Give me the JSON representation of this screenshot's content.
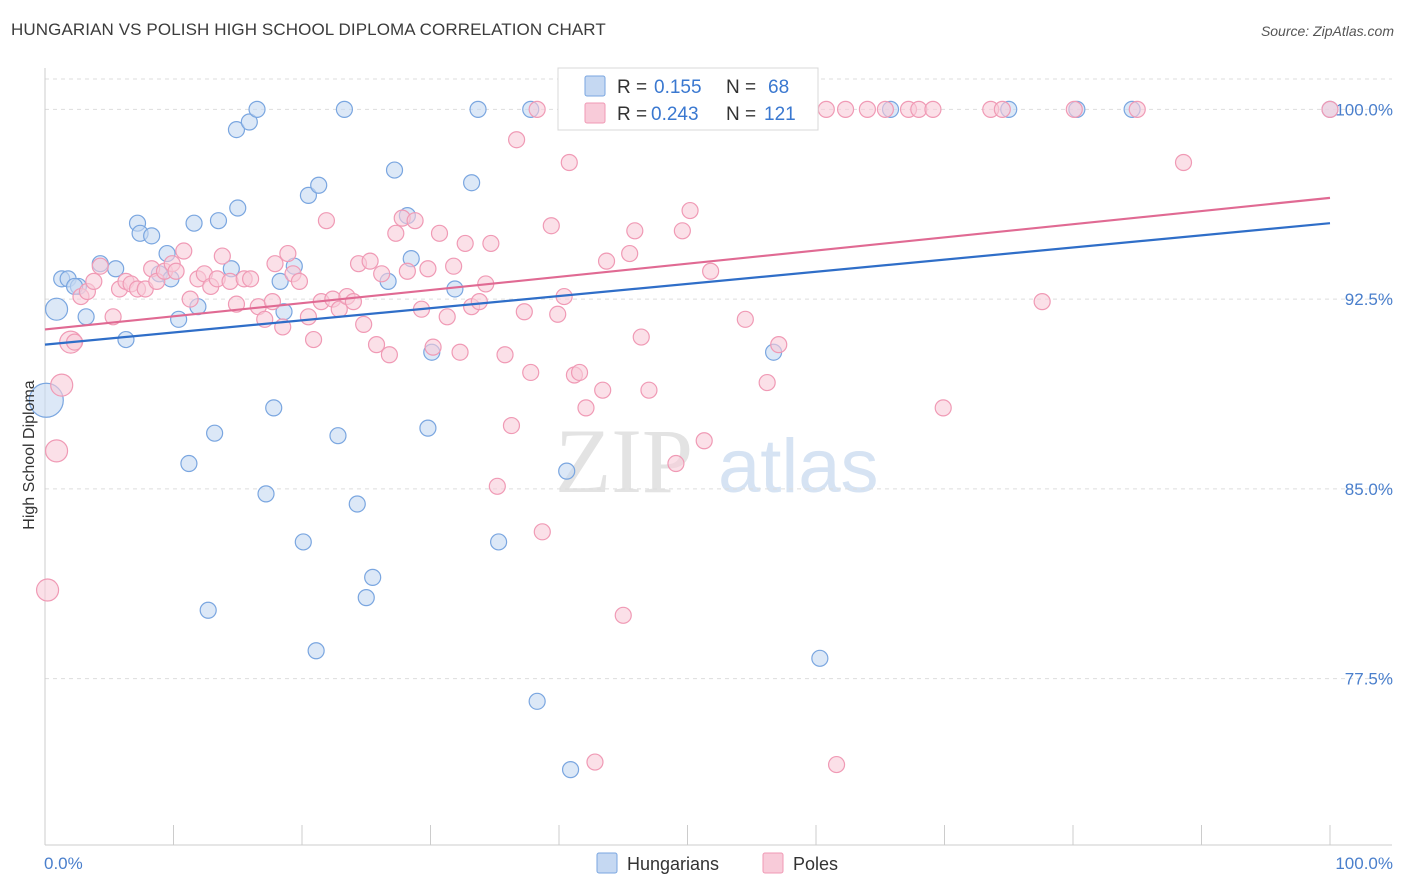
{
  "title": "HUNGARIAN VS POLISH HIGH SCHOOL DIPLOMA CORRELATION CHART",
  "source": "Source: ZipAtlas.com",
  "watermark": {
    "zip": "ZIP",
    "atlas": "atlas"
  },
  "colors": {
    "hungarians": "#7aa6e0",
    "hungarians_fill": "#c5d8f2",
    "hungarians_line": "#2f6ec8",
    "poles": "#f09ab5",
    "poles_fill": "#f8cbd9",
    "poles_line": "#e06a93",
    "axis_text": "#4a7fcc",
    "grid": "#dddddd"
  },
  "legend": {
    "rows": [
      {
        "r_label": "R =",
        "r_value": "0.155",
        "n_label": "N =",
        "n_value": "68"
      },
      {
        "r_label": "R =",
        "r_value": "0.243",
        "n_label": "N =",
        "n_value": "121"
      }
    ]
  },
  "chart_data": {
    "type": "scatter",
    "title": "HUNGARIAN VS POLISH HIGH SCHOOL DIPLOMA CORRELATION CHART",
    "ylabel": "High School Diploma",
    "xlabel": "",
    "xlim": [
      0,
      100
    ],
    "ylim": [
      71.0,
      101.2
    ],
    "x_tick_labels": [
      "0.0%",
      "100.0%"
    ],
    "y_ticks": [
      77.5,
      85.0,
      92.5,
      100.0
    ],
    "y_tick_labels": [
      "77.5%",
      "85.0%",
      "92.5%",
      "100.0%"
    ],
    "legend_position": "bottom",
    "series": [
      {
        "name": "Hungarians",
        "r": 0.155,
        "n": 68,
        "trend": {
          "x0": 0,
          "y0": 90.7,
          "x1": 100,
          "y1": 95.5
        },
        "points": [
          [
            0.1,
            88.5
          ],
          [
            0.9,
            92.1
          ],
          [
            1.3,
            93.3
          ],
          [
            1.8,
            93.3
          ],
          [
            2.6,
            93.0
          ],
          [
            2.3,
            93.0
          ],
          [
            3.2,
            91.8
          ],
          [
            4.3,
            93.9
          ],
          [
            5.5,
            93.7
          ],
          [
            6.3,
            90.9
          ],
          [
            7.2,
            95.5
          ],
          [
            7.4,
            95.1
          ],
          [
            8.3,
            95.0
          ],
          [
            8.9,
            93.5
          ],
          [
            9.5,
            94.3
          ],
          [
            9.8,
            93.3
          ],
          [
            10.4,
            91.7
          ],
          [
            11.2,
            86.0
          ],
          [
            11.6,
            95.5
          ],
          [
            11.9,
            92.2
          ],
          [
            12.7,
            80.2
          ],
          [
            13.2,
            87.2
          ],
          [
            13.5,
            95.6
          ],
          [
            14.5,
            93.7
          ],
          [
            14.9,
            99.2
          ],
          [
            15.0,
            96.1
          ],
          [
            15.9,
            99.5
          ],
          [
            16.5,
            100.0
          ],
          [
            17.2,
            84.8
          ],
          [
            17.8,
            88.2
          ],
          [
            18.3,
            93.2
          ],
          [
            18.6,
            92.0
          ],
          [
            19.4,
            93.8
          ],
          [
            20.1,
            82.9
          ],
          [
            20.5,
            96.6
          ],
          [
            21.1,
            78.6
          ],
          [
            21.3,
            97.0
          ],
          [
            22.8,
            87.1
          ],
          [
            23.3,
            100.0
          ],
          [
            24.3,
            84.4
          ],
          [
            25.0,
            80.7
          ],
          [
            25.5,
            81.5
          ],
          [
            26.7,
            93.2
          ],
          [
            27.2,
            97.6
          ],
          [
            28.2,
            95.8
          ],
          [
            28.5,
            94.1
          ],
          [
            29.8,
            87.4
          ],
          [
            30.1,
            90.4
          ],
          [
            31.9,
            92.9
          ],
          [
            33.2,
            97.1
          ],
          [
            33.7,
            100.0
          ],
          [
            35.3,
            82.9
          ],
          [
            37.8,
            100.0
          ],
          [
            38.3,
            76.6
          ],
          [
            40.6,
            85.7
          ],
          [
            40.9,
            73.9
          ],
          [
            47.3,
            100.0
          ],
          [
            50.6,
            100.0
          ],
          [
            51.0,
            100.0
          ],
          [
            53.3,
            100.0
          ],
          [
            55.6,
            100.0
          ],
          [
            56.7,
            90.4
          ],
          [
            60.3,
            78.3
          ],
          [
            65.8,
            100.0
          ],
          [
            75.0,
            100.0
          ],
          [
            80.3,
            100.0
          ],
          [
            84.6,
            100.0
          ],
          [
            100.0,
            100.0
          ]
        ]
      },
      {
        "name": "Poles",
        "r": 0.243,
        "n": 121,
        "trend": {
          "x0": 0,
          "y0": 91.3,
          "x1": 100,
          "y1": 96.5
        },
        "points": [
          [
            0.2,
            81.0
          ],
          [
            0.9,
            86.5
          ],
          [
            1.3,
            89.1
          ],
          [
            2.0,
            90.8
          ],
          [
            2.3,
            90.8
          ],
          [
            2.8,
            92.6
          ],
          [
            3.3,
            92.8
          ],
          [
            3.8,
            93.2
          ],
          [
            4.3,
            93.8
          ],
          [
            5.3,
            91.8
          ],
          [
            5.8,
            92.9
          ],
          [
            6.3,
            93.2
          ],
          [
            6.7,
            93.1
          ],
          [
            7.2,
            92.9
          ],
          [
            7.8,
            92.9
          ],
          [
            8.3,
            93.7
          ],
          [
            8.7,
            93.2
          ],
          [
            9.3,
            93.6
          ],
          [
            9.9,
            93.9
          ],
          [
            10.2,
            93.6
          ],
          [
            10.8,
            94.4
          ],
          [
            11.3,
            92.5
          ],
          [
            11.9,
            93.3
          ],
          [
            12.4,
            93.5
          ],
          [
            12.9,
            93.0
          ],
          [
            13.4,
            93.3
          ],
          [
            13.8,
            94.2
          ],
          [
            14.4,
            93.2
          ],
          [
            14.9,
            92.3
          ],
          [
            15.5,
            93.3
          ],
          [
            16.0,
            93.3
          ],
          [
            16.6,
            92.2
          ],
          [
            17.1,
            91.7
          ],
          [
            17.7,
            92.4
          ],
          [
            17.9,
            93.9
          ],
          [
            18.5,
            91.4
          ],
          [
            18.9,
            94.3
          ],
          [
            19.3,
            93.5
          ],
          [
            19.8,
            93.2
          ],
          [
            20.5,
            91.8
          ],
          [
            20.9,
            90.9
          ],
          [
            21.5,
            92.4
          ],
          [
            21.9,
            95.6
          ],
          [
            22.4,
            92.5
          ],
          [
            22.9,
            92.1
          ],
          [
            23.5,
            92.6
          ],
          [
            24.0,
            92.4
          ],
          [
            24.4,
            93.9
          ],
          [
            24.8,
            91.5
          ],
          [
            25.3,
            94.0
          ],
          [
            25.8,
            90.7
          ],
          [
            26.2,
            93.5
          ],
          [
            26.8,
            90.3
          ],
          [
            27.3,
            95.1
          ],
          [
            27.8,
            95.7
          ],
          [
            28.2,
            93.6
          ],
          [
            28.8,
            95.6
          ],
          [
            29.3,
            92.1
          ],
          [
            29.8,
            93.7
          ],
          [
            30.2,
            90.6
          ],
          [
            30.7,
            95.1
          ],
          [
            31.3,
            91.8
          ],
          [
            31.8,
            93.8
          ],
          [
            32.3,
            90.4
          ],
          [
            32.7,
            94.7
          ],
          [
            33.2,
            92.2
          ],
          [
            33.8,
            92.4
          ],
          [
            34.3,
            93.1
          ],
          [
            34.7,
            94.7
          ],
          [
            35.2,
            85.1
          ],
          [
            35.8,
            90.3
          ],
          [
            36.3,
            87.5
          ],
          [
            36.7,
            98.8
          ],
          [
            37.3,
            92.0
          ],
          [
            37.8,
            89.6
          ],
          [
            38.3,
            100.0
          ],
          [
            38.7,
            83.3
          ],
          [
            39.4,
            95.4
          ],
          [
            39.9,
            91.9
          ],
          [
            40.4,
            92.6
          ],
          [
            40.8,
            97.9
          ],
          [
            41.2,
            89.5
          ],
          [
            41.6,
            89.6
          ],
          [
            42.1,
            88.2
          ],
          [
            43.4,
            88.9
          ],
          [
            43.7,
            94.0
          ],
          [
            45.0,
            80.0
          ],
          [
            45.5,
            94.3
          ],
          [
            45.9,
            95.2
          ],
          [
            46.4,
            91.0
          ],
          [
            47.0,
            88.9
          ],
          [
            47.6,
            100.0
          ],
          [
            49.1,
            86.0
          ],
          [
            49.6,
            95.2
          ],
          [
            50.2,
            96.0
          ],
          [
            51.3,
            86.9
          ],
          [
            51.8,
            93.6
          ],
          [
            54.0,
            100.0
          ],
          [
            54.5,
            91.7
          ],
          [
            56.2,
            89.2
          ],
          [
            57.1,
            90.7
          ],
          [
            58.6,
            100.0
          ],
          [
            60.8,
            100.0
          ],
          [
            61.6,
            74.1
          ],
          [
            62.3,
            100.0
          ],
          [
            64.0,
            100.0
          ],
          [
            65.4,
            100.0
          ],
          [
            67.2,
            100.0
          ],
          [
            68.0,
            100.0
          ],
          [
            69.1,
            100.0
          ],
          [
            69.9,
            88.2
          ],
          [
            73.6,
            100.0
          ],
          [
            74.5,
            100.0
          ],
          [
            77.6,
            92.4
          ],
          [
            80.1,
            100.0
          ],
          [
            85.0,
            100.0
          ],
          [
            88.6,
            97.9
          ],
          [
            100.0,
            100.0
          ],
          [
            42.8,
            74.2
          ]
        ]
      }
    ]
  },
  "bottom_legend": {
    "items": [
      "Hungarians",
      "Poles"
    ]
  }
}
